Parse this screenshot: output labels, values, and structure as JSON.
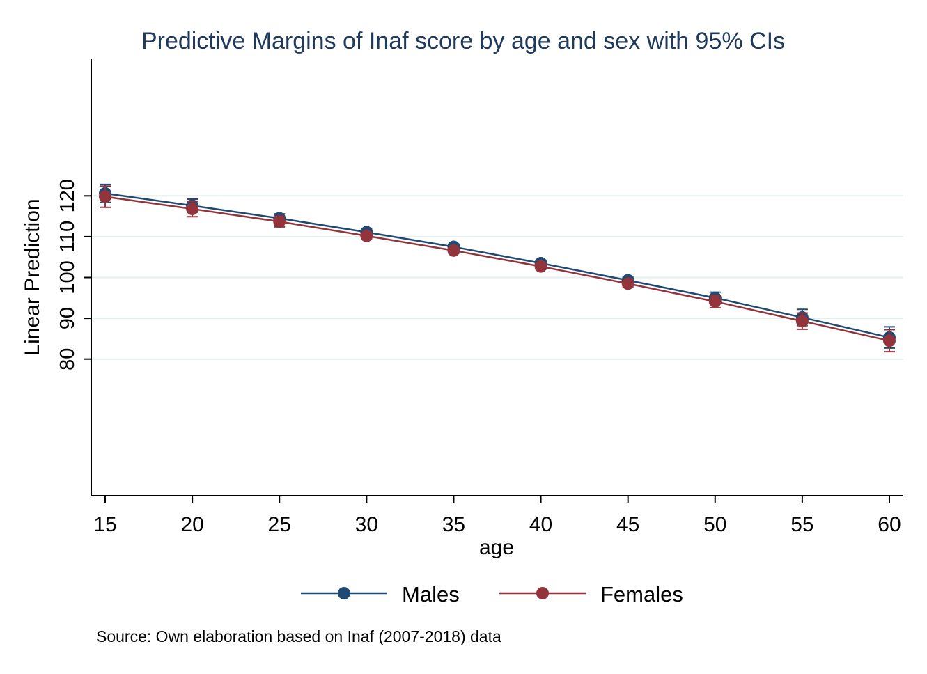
{
  "chart_data": {
    "type": "line",
    "title": "Predictive Margins of Inaf score by age and sex with 95% CIs",
    "xlabel": "age",
    "ylabel": "Linear Prediction",
    "x": [
      15,
      20,
      25,
      30,
      35,
      40,
      45,
      50,
      55,
      60
    ],
    "x_ticks": [
      "15",
      "20",
      "25",
      "30",
      "35",
      "40",
      "45",
      "50",
      "55",
      "60"
    ],
    "y_ticks": [
      "80",
      "90",
      "100",
      "110",
      "120"
    ],
    "xlim": [
      14.2,
      60.8
    ],
    "ylim": [
      46.5,
      153.5
    ],
    "grid": true,
    "legend_position": "bottom",
    "series": [
      {
        "name": "Males",
        "color": "#1f4a73",
        "values": [
          120.6,
          117.6,
          114.5,
          111.1,
          107.5,
          103.5,
          99.3,
          95.0,
          90.2,
          85.3
        ],
        "ci_low": [
          118.4,
          116.0,
          113.4,
          110.3,
          106.8,
          102.8,
          98.4,
          93.6,
          88.2,
          82.7
        ],
        "ci_high": [
          122.8,
          119.2,
          115.6,
          111.9,
          108.2,
          104.2,
          100.2,
          96.4,
          92.2,
          87.9
        ]
      },
      {
        "name": "Females",
        "color": "#93343c",
        "values": [
          119.8,
          116.8,
          113.7,
          110.2,
          106.6,
          102.7,
          98.5,
          94.1,
          89.3,
          84.5
        ],
        "ci_low": [
          117.2,
          114.9,
          112.4,
          109.3,
          105.9,
          102.0,
          97.6,
          92.6,
          87.3,
          81.8
        ],
        "ci_high": [
          122.4,
          118.7,
          115.0,
          111.1,
          107.3,
          103.4,
          99.4,
          95.6,
          91.3,
          87.2
        ]
      }
    ],
    "note": "Source: Own elaboration based on Inaf (2007-2018) data"
  }
}
